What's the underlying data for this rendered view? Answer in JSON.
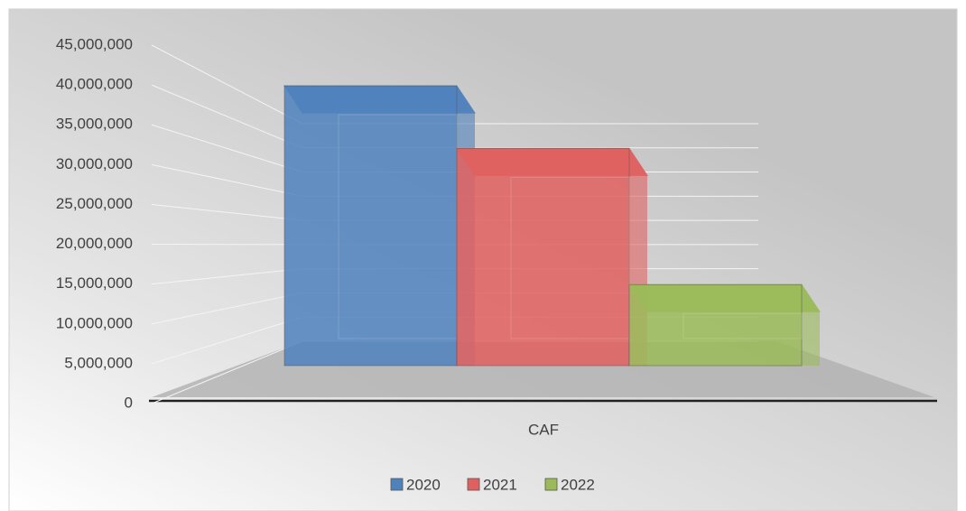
{
  "chart_data": {
    "type": "bar",
    "categories": [
      "CAF"
    ],
    "series": [
      {
        "name": "2020",
        "color": "#4f81bd",
        "values": [
          38000000
        ]
      },
      {
        "name": "2021",
        "color": "#e0605f",
        "values": [
          29500000
        ]
      },
      {
        "name": "2022",
        "color": "#9bbb59",
        "values": [
          11000000
        ]
      }
    ],
    "ylim": [
      0,
      45000000
    ],
    "yticks": [
      0,
      {
        "value": 5000000,
        "label": "5,000,000"
      },
      {
        "value": 10000000,
        "label": "10,000,000"
      },
      {
        "value": 15000000,
        "label": "15,000,000"
      },
      {
        "value": 20000000,
        "label": "20,000,000"
      },
      {
        "value": 25000000,
        "label": "25,000,000"
      },
      {
        "value": 30000000,
        "label": "30,000,000"
      },
      {
        "value": 35000000,
        "label": "35,000,000"
      },
      {
        "value": 40000000,
        "label": "40,000,000"
      },
      {
        "value": 45000000,
        "label": "45,000,000"
      }
    ],
    "grid": true,
    "legend": "bottom"
  }
}
